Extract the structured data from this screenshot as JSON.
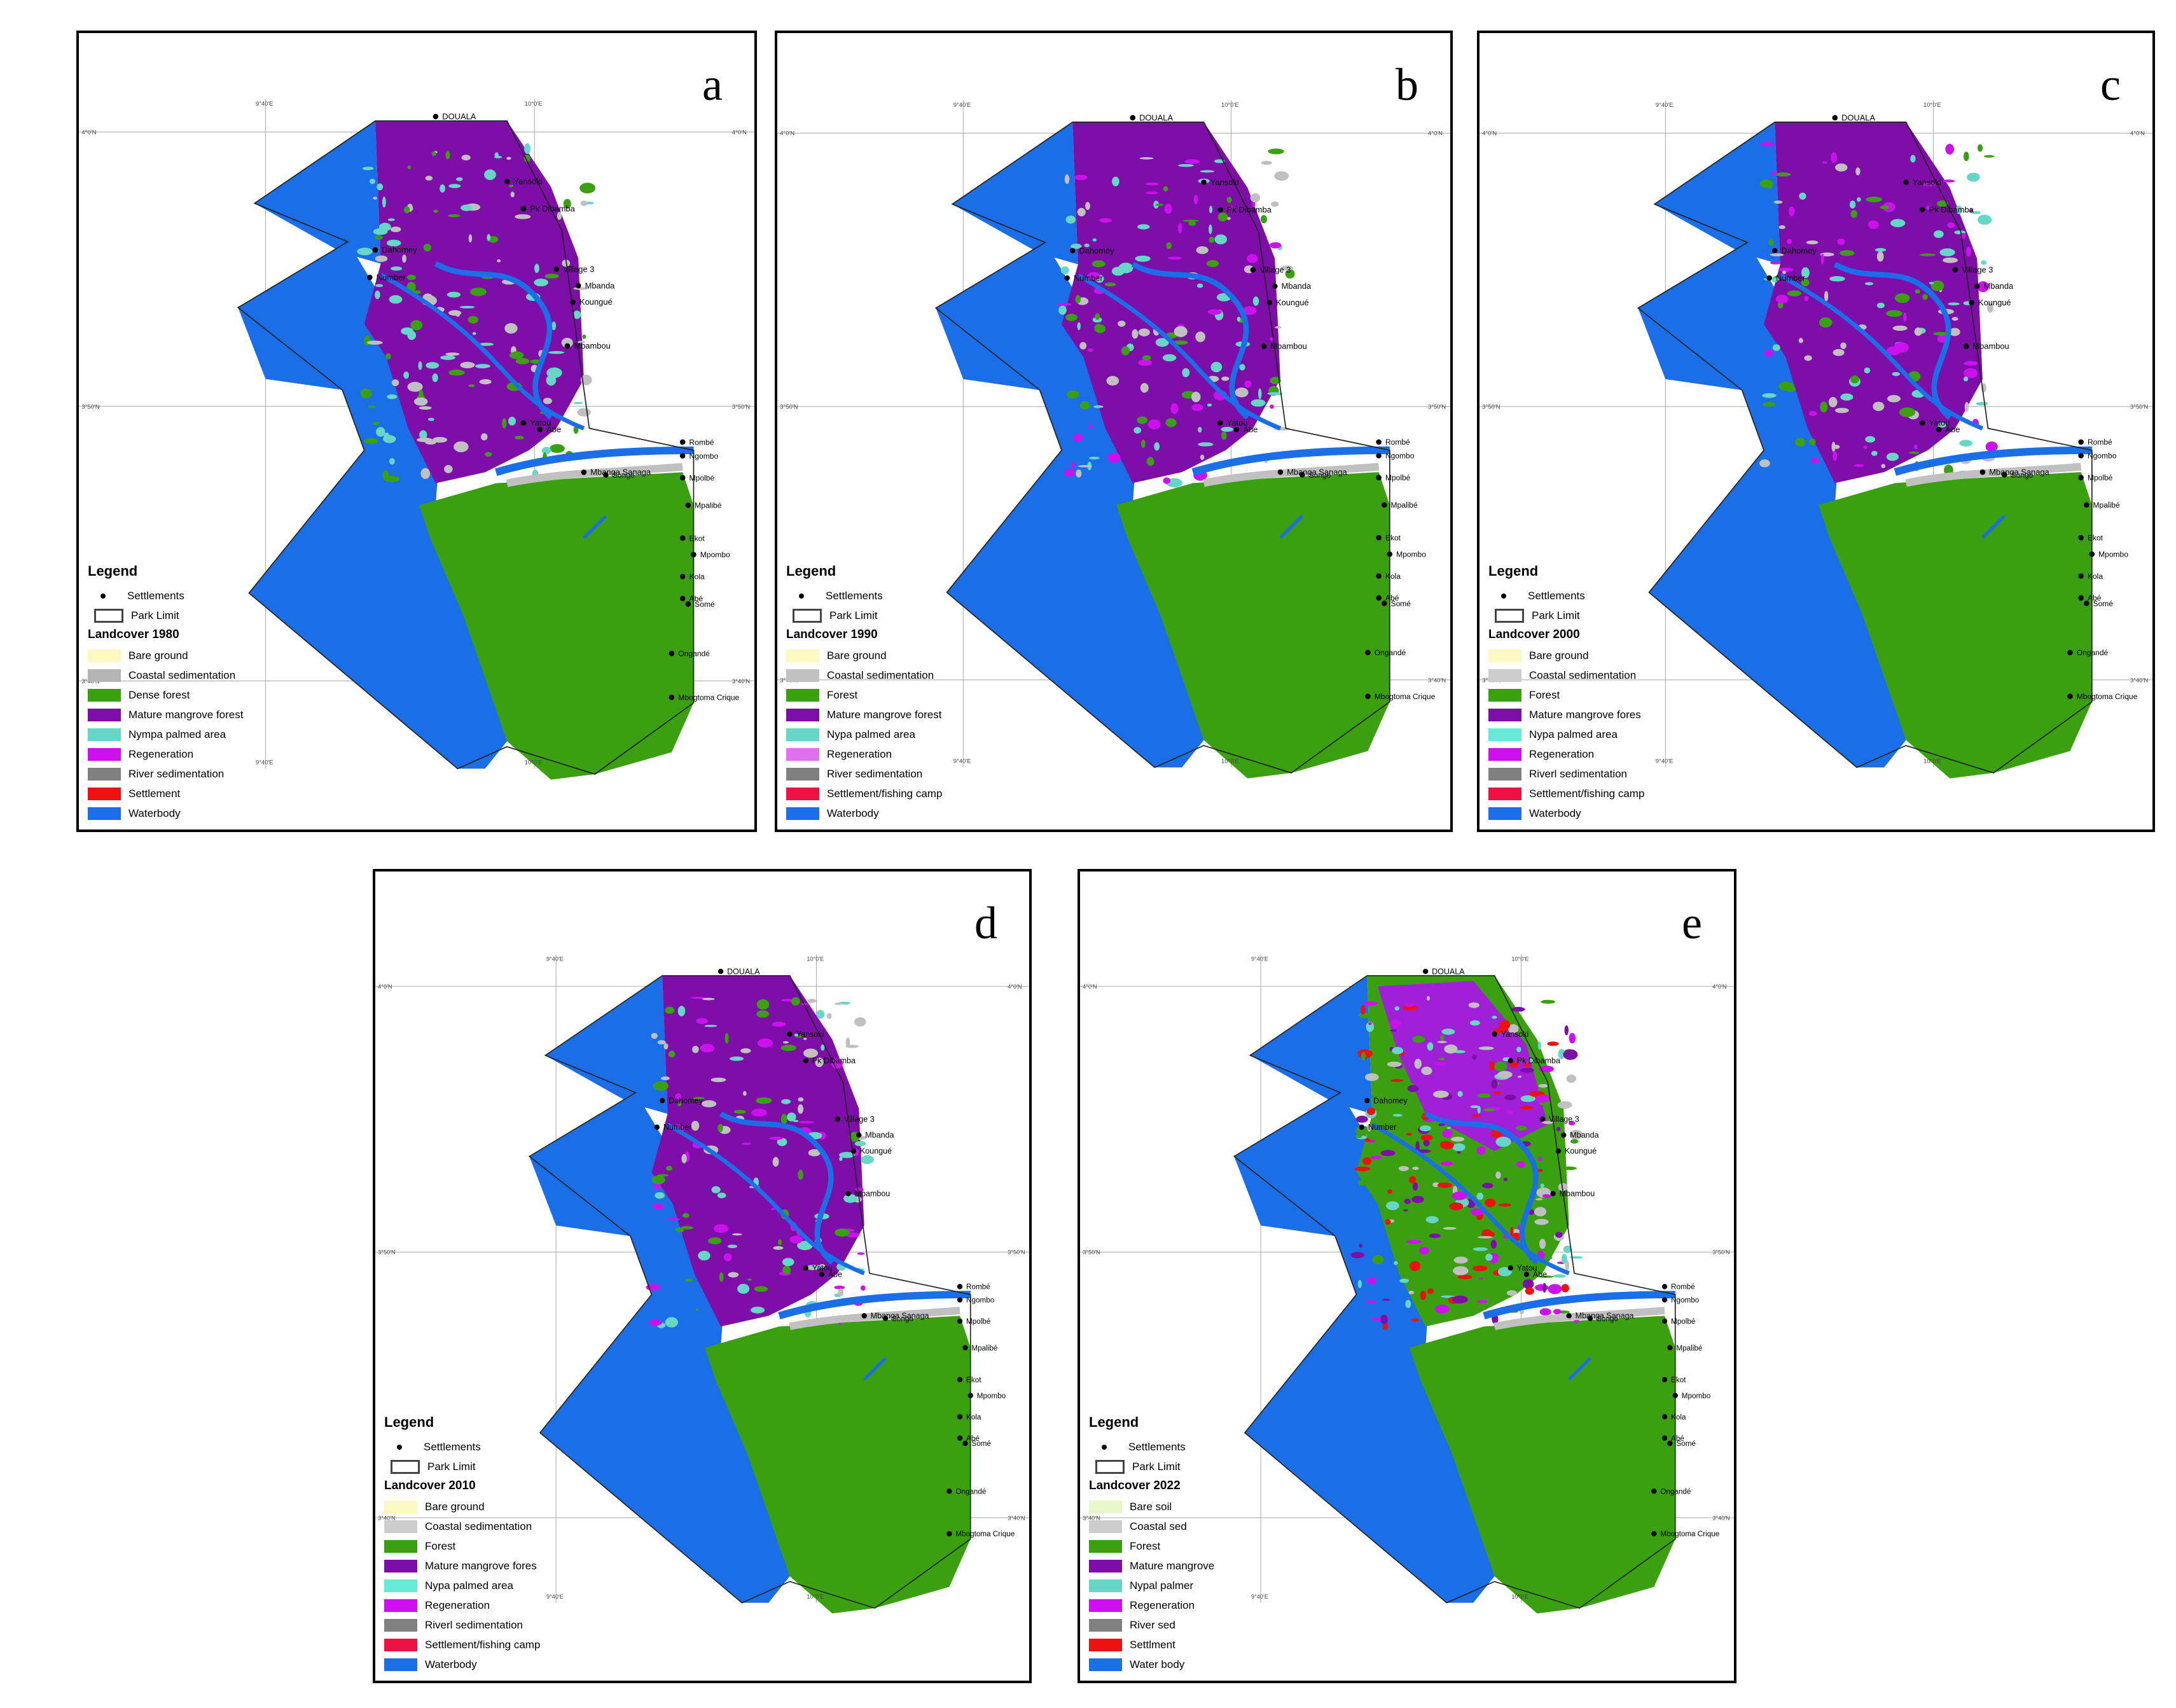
{
  "colors": {
    "waterbody": "#1a6fe8",
    "forest": "#3aa010",
    "mangrove": "#7d0ea8",
    "mangrove_2022": "#a020d8",
    "nypa": "#66d6c6",
    "regeneration": "#cc11ee",
    "river_sed": "#808080",
    "coastal_sed": "#c0c0c0",
    "bare": "#fbf8c0",
    "settlement": "#ee1111"
  },
  "common": {
    "legend_title": "Legend",
    "settlements": "Settlements",
    "park_limit": "Park Limit",
    "coord_labels": [
      "9°40'E",
      "10°0'E",
      "4°0'N",
      "3°50'N",
      "3°40'N"
    ]
  },
  "places": [
    "DOUALA",
    "Yansoki",
    "Pk Dibamba",
    "Village 3",
    "Mbanda",
    "Koungué",
    "Mbambou",
    "Dahomey",
    "Number",
    "Yatou",
    "Abe",
    "Mbanga Sanaga",
    "Songo",
    "Rombé",
    "Ngombo",
    "Mpolbé",
    "Mpalibé",
    "Ekot",
    "Mpombo",
    "Kola",
    "Abé",
    "Somé",
    "Ongandé",
    "Mbogtoma Crique"
  ],
  "panels": [
    {
      "letter": "a",
      "landcover_title": "Landcover  1980",
      "mangrove_color_key": "mangrove",
      "legend": [
        {
          "label": "Bare ground",
          "color": "#fbf8c0"
        },
        {
          "label": "Coastal sedimentation",
          "color": "#b4b4b4"
        },
        {
          "label": "Dense forest",
          "color": "#3aa010"
        },
        {
          "label": "Mature mangrove forest",
          "color": "#7d0ea8"
        },
        {
          "label": "Nympa palmed area",
          "color": "#66d6c6"
        },
        {
          "label": "Regeneration",
          "color": "#cc11ee"
        },
        {
          "label": "River sedimentation",
          "color": "#808080"
        },
        {
          "label": "Settlement",
          "color": "#ee1111"
        },
        {
          "label": "Waterbody",
          "color": "#1a6fe8"
        }
      ]
    },
    {
      "letter": "b",
      "landcover_title": "Landcover  1990",
      "mangrove_color_key": "mangrove",
      "legend": [
        {
          "label": "Bare ground",
          "color": "#fbf8c0"
        },
        {
          "label": "Coastal sedimentation",
          "color": "#c0c0c0"
        },
        {
          "label": "Forest",
          "color": "#3aa010"
        },
        {
          "label": "Mature mangrove forest",
          "color": "#7d0ea8"
        },
        {
          "label": "Nypa palmed area",
          "color": "#66d6c6"
        },
        {
          "label": "Regeneration",
          "color": "#e070ee"
        },
        {
          "label": "River sedimentation",
          "color": "#808080"
        },
        {
          "label": "Settlement/fishing camp",
          "color": "#ee1144"
        },
        {
          "label": "Waterbody",
          "color": "#1a6fe8"
        }
      ]
    },
    {
      "letter": "c",
      "landcover_title": "Landcover  2000",
      "mangrove_color_key": "mangrove",
      "legend": [
        {
          "label": "Bare ground",
          "color": "#fbf8c0"
        },
        {
          "label": "Coastal sedimentation",
          "color": "#cccccc"
        },
        {
          "label": "Forest",
          "color": "#3aa010"
        },
        {
          "label": "Mature mangrove fores",
          "color": "#7d0ea8"
        },
        {
          "label": "Nypa palmed area",
          "color": "#66ead8"
        },
        {
          "label": "Regeneration",
          "color": "#cc11ee"
        },
        {
          "label": "Riverl sedimentation",
          "color": "#808080"
        },
        {
          "label": "Settlement/fishing camp",
          "color": "#ee1144"
        },
        {
          "label": "Waterbody",
          "color": "#1a6fe8"
        }
      ]
    },
    {
      "letter": "d",
      "landcover_title": "Landcover  2010",
      "mangrove_color_key": "mangrove",
      "legend": [
        {
          "label": "Bare ground",
          "color": "#fbf8c0"
        },
        {
          "label": "Coastal sedimentation",
          "color": "#cccccc"
        },
        {
          "label": "Forest",
          "color": "#3aa010"
        },
        {
          "label": "Mature mangrove fores",
          "color": "#7d0ea8"
        },
        {
          "label": "Nypa palmed area",
          "color": "#66ead8"
        },
        {
          "label": "Regeneration",
          "color": "#cc11ee"
        },
        {
          "label": "Riverl sedimentation",
          "color": "#808080"
        },
        {
          "label": "Settlement/fishing camp",
          "color": "#ee1144"
        },
        {
          "label": "Waterbody",
          "color": "#1a6fe8"
        }
      ]
    },
    {
      "letter": "e",
      "landcover_title": "Landcover  2022",
      "mangrove_color_key": "mangrove_2022",
      "legend": [
        {
          "label": "Bare soil",
          "color": "#e8f7c8"
        },
        {
          "label": "Coastal sed",
          "color": "#cccccc"
        },
        {
          "label": "Forest",
          "color": "#3aa010"
        },
        {
          "label": "Mature mangrove",
          "color": "#7d0ea8"
        },
        {
          "label": "Nypal palmer",
          "color": "#66d6c6"
        },
        {
          "label": "Regeneration",
          "color": "#cc11ee"
        },
        {
          "label": "River sed",
          "color": "#808080"
        },
        {
          "label": "Settlment",
          "color": "#ee1111"
        },
        {
          "label": "Water body",
          "color": "#1a6fe8"
        }
      ]
    }
  ]
}
